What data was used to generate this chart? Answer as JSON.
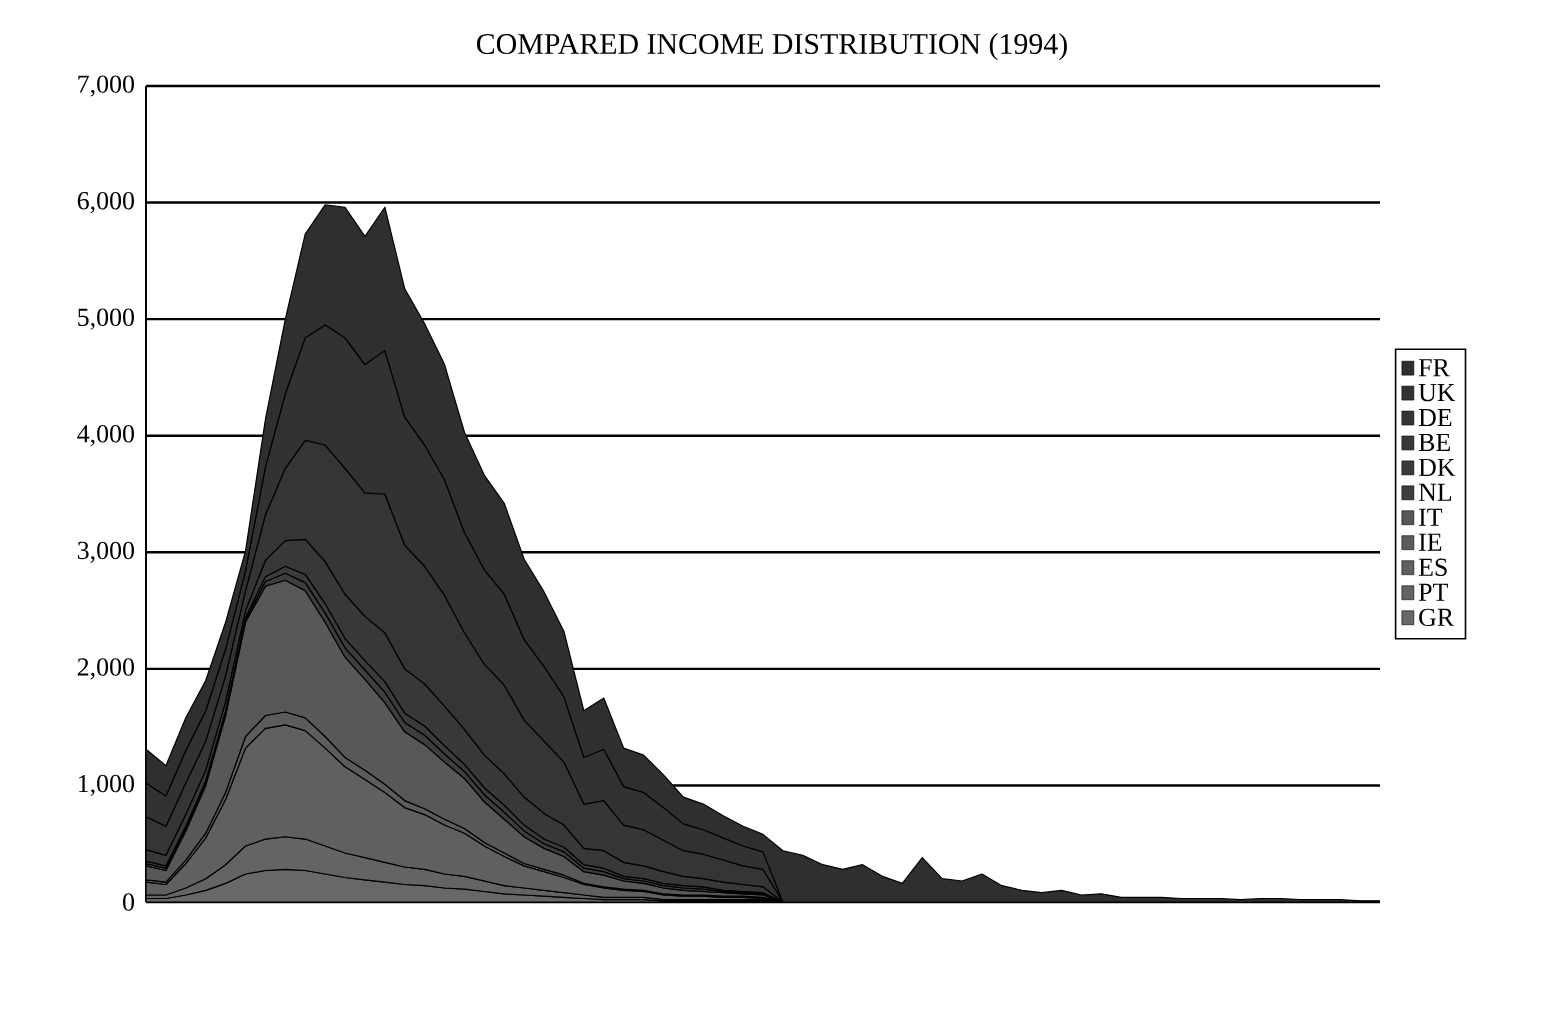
{
  "chart_data": {
    "type": "area",
    "title": "COMPARED INCOME DISTRIBUTION (1994)",
    "stacked": true,
    "grid": "y",
    "legend": "right",
    "tick_labels": "y",
    "categories": [
      null,
      null,
      null,
      null,
      null,
      null,
      null,
      null,
      null,
      null,
      null,
      null,
      null,
      null,
      null,
      null,
      null,
      null,
      null,
      null,
      null,
      null,
      null,
      null,
      null,
      null,
      null,
      null,
      null,
      null,
      null,
      null,
      null,
      null,
      null,
      null,
      null,
      null,
      null,
      null,
      null,
      null,
      null,
      null,
      null,
      null,
      null,
      null,
      null,
      null,
      null,
      null,
      null,
      null,
      null,
      null,
      null,
      null,
      null,
      null,
      null,
      null,
      null
    ],
    "ylim": [
      0,
      7000
    ],
    "yticks": [
      0,
      {
        "value": 1000,
        "label": "1,000"
      },
      {
        "value": 2000,
        "label": "2,000"
      },
      {
        "value": 3000,
        "label": "3,000"
      },
      {
        "value": 4000,
        "label": "4,000"
      },
      {
        "value": 5000,
        "label": "5,000"
      },
      {
        "value": 6000,
        "label": "6,000"
      },
      {
        "value": 7000,
        "label": "7,000"
      }
    ],
    "series": [
      {
        "name": "GR",
        "color": "#686868",
        "values": [
          30,
          30,
          60,
          100,
          160,
          240,
          270,
          280,
          270,
          240,
          210,
          190,
          170,
          150,
          140,
          120,
          110,
          90,
          70,
          60,
          50,
          40,
          30,
          20,
          20,
          20,
          10,
          10,
          10,
          10,
          10,
          10,
          0,
          null,
          null,
          null,
          null,
          null,
          null,
          null,
          null,
          null,
          null,
          null,
          null,
          null,
          null,
          null,
          null,
          null,
          null,
          null,
          null,
          null,
          null,
          null,
          null,
          null,
          null,
          null,
          null,
          null,
          null
        ]
      },
      {
        "name": "PT",
        "color": "#646464",
        "values": [
          30,
          30,
          60,
          100,
          160,
          240,
          270,
          280,
          270,
          240,
          210,
          190,
          170,
          150,
          140,
          120,
          110,
          90,
          70,
          60,
          50,
          40,
          30,
          20,
          20,
          20,
          10,
          10,
          10,
          10,
          10,
          10,
          0,
          null,
          null,
          null,
          null,
          null,
          null,
          null,
          null,
          null,
          null,
          null,
          null,
          null,
          null,
          null,
          null,
          null,
          null,
          null,
          null,
          null,
          null,
          null,
          null,
          null,
          null,
          null,
          null,
          null,
          null
        ]
      },
      {
        "name": "ES",
        "color": "#606060",
        "values": [
          110,
          90,
          210,
          350,
          560,
          840,
          950,
          960,
          930,
          840,
          740,
          670,
          600,
          510,
          470,
          420,
          370,
          300,
          250,
          190,
          160,
          130,
          90,
          80,
          60,
          50,
          40,
          30,
          30,
          20,
          20,
          10,
          0,
          null,
          null,
          null,
          null,
          null,
          null,
          null,
          null,
          null,
          null,
          null,
          null,
          null,
          null,
          null,
          null,
          null,
          null,
          null,
          null,
          null,
          null,
          null,
          null,
          null,
          null,
          null,
          null,
          null,
          null
        ]
      },
      {
        "name": "IE",
        "color": "#5c5c5c",
        "values": [
          20,
          20,
          30,
          40,
          60,
          100,
          110,
          110,
          110,
          100,
          80,
          80,
          70,
          60,
          50,
          50,
          40,
          30,
          30,
          20,
          20,
          20,
          10,
          10,
          10,
          10,
          10,
          10,
          10,
          10,
          10,
          10,
          0,
          null,
          null,
          null,
          null,
          null,
          null,
          null,
          null,
          null,
          null,
          null,
          null,
          null,
          null,
          null,
          null,
          null,
          null,
          null,
          null,
          null,
          null,
          null,
          null,
          null,
          null,
          null,
          null,
          null,
          null
        ]
      },
      {
        "name": "IT",
        "color": "#585858",
        "values": [
          120,
          100,
          250,
          410,
          660,
          980,
          1110,
          1130,
          1090,
          980,
          860,
          780,
          700,
          590,
          550,
          490,
          430,
          350,
          290,
          230,
          180,
          160,
          100,
          100,
          70,
          60,
          50,
          40,
          30,
          30,
          20,
          20,
          0,
          null,
          null,
          null,
          null,
          null,
          null,
          null,
          null,
          null,
          null,
          null,
          null,
          null,
          null,
          null,
          null,
          null,
          null,
          null,
          null,
          null,
          null,
          null,
          null,
          null,
          null,
          null,
          null,
          null,
          null
        ]
      },
      {
        "name": "NL",
        "color": "#3e3e3e",
        "values": [
          20,
          20,
          20,
          20,
          20,
          20,
          40,
          60,
          70,
          80,
          80,
          80,
          90,
          80,
          80,
          70,
          60,
          60,
          60,
          50,
          40,
          40,
          30,
          30,
          20,
          20,
          20,
          20,
          20,
          10,
          10,
          10,
          0,
          null,
          null,
          null,
          null,
          null,
          null,
          null,
          null,
          null,
          null,
          null,
          null,
          null,
          null,
          null,
          null,
          null,
          null,
          null,
          null,
          null,
          null,
          null,
          null,
          null,
          null,
          null,
          null,
          null,
          null
        ]
      },
      {
        "name": "DK",
        "color": "#3b3b3b",
        "values": [
          20,
          20,
          20,
          20,
          20,
          20,
          40,
          60,
          70,
          80,
          80,
          80,
          90,
          80,
          80,
          70,
          60,
          60,
          60,
          50,
          40,
          40,
          30,
          30,
          20,
          20,
          20,
          20,
          20,
          10,
          10,
          10,
          0,
          null,
          null,
          null,
          null,
          null,
          null,
          null,
          null,
          null,
          null,
          null,
          null,
          null,
          null,
          null,
          null,
          null,
          null,
          null,
          null,
          null,
          null,
          null,
          null,
          null,
          null,
          null,
          null,
          null,
          null
        ]
      },
      {
        "name": "BE",
        "color": "#383838",
        "values": [
          100,
          90,
          100,
          90,
          80,
          60,
          140,
          220,
          300,
          360,
          380,
          380,
          420,
          380,
          360,
          340,
          300,
          280,
          270,
          240,
          220,
          190,
          140,
          150,
          120,
          110,
          100,
          80,
          70,
          70,
          60,
          50,
          0,
          null,
          null,
          null,
          null,
          null,
          null,
          null,
          null,
          null,
          null,
          null,
          null,
          null,
          null,
          null,
          null,
          null,
          null,
          null,
          null,
          null,
          null,
          null,
          null,
          null,
          null,
          null,
          null,
          null,
          null
        ]
      },
      {
        "name": "DE",
        "color": "#353535",
        "values": [
          280,
          250,
          270,
          250,
          220,
          170,
          390,
          620,
          850,
          1000,
          1080,
          1060,
          1190,
          1060,
          1010,
          950,
          830,
          780,
          760,
          660,
          620,
          540,
          380,
          430,
          320,
          310,
          270,
          220,
          210,
          190,
          160,
          150,
          0,
          null,
          null,
          null,
          null,
          null,
          null,
          null,
          null,
          null,
          null,
          null,
          null,
          null,
          null,
          null,
          null,
          null,
          null,
          null,
          null,
          null,
          null,
          null,
          null,
          null,
          null,
          null,
          null,
          null,
          null
        ]
      },
      {
        "name": "UK",
        "color": "#323232",
        "values": [
          290,
          260,
          280,
          260,
          230,
          170,
          410,
          640,
          880,
          1030,
          1120,
          1100,
          1230,
          1100,
          1040,
          990,
          860,
          810,
          780,
          690,
          640,
          560,
          400,
          440,
          330,
          320,
          280,
          230,
          210,
          190,
          170,
          150,
          0,
          null,
          null,
          null,
          null,
          null,
          null,
          null,
          null,
          null,
          null,
          null,
          null,
          null,
          null,
          null,
          null,
          null,
          null,
          null,
          null,
          null,
          null,
          null,
          null,
          null,
          null,
          null,
          null,
          null,
          null
        ]
      },
      {
        "name": "FR",
        "color": "#2f2f2f",
        "values": [
          290,
          260,
          280,
          260,
          230,
          170,
          410,
          640,
          890,
          1030,
          1120,
          1100,
          1230,
          1100,
          1040,
          990,
          860,
          810,
          780,
          690,
          640,
          560,
          400,
          440,
          330,
          320,
          280,
          230,
          220,
          190,
          170,
          150,
          440,
          400,
          320,
          280,
          320,
          220,
          160,
          380,
          200,
          180,
          240,
          140,
          100,
          80,
          100,
          60,
          70,
          40,
          40,
          40,
          30,
          30,
          30,
          20,
          30,
          30,
          20,
          20,
          20,
          10,
          10
        ]
      }
    ]
  }
}
